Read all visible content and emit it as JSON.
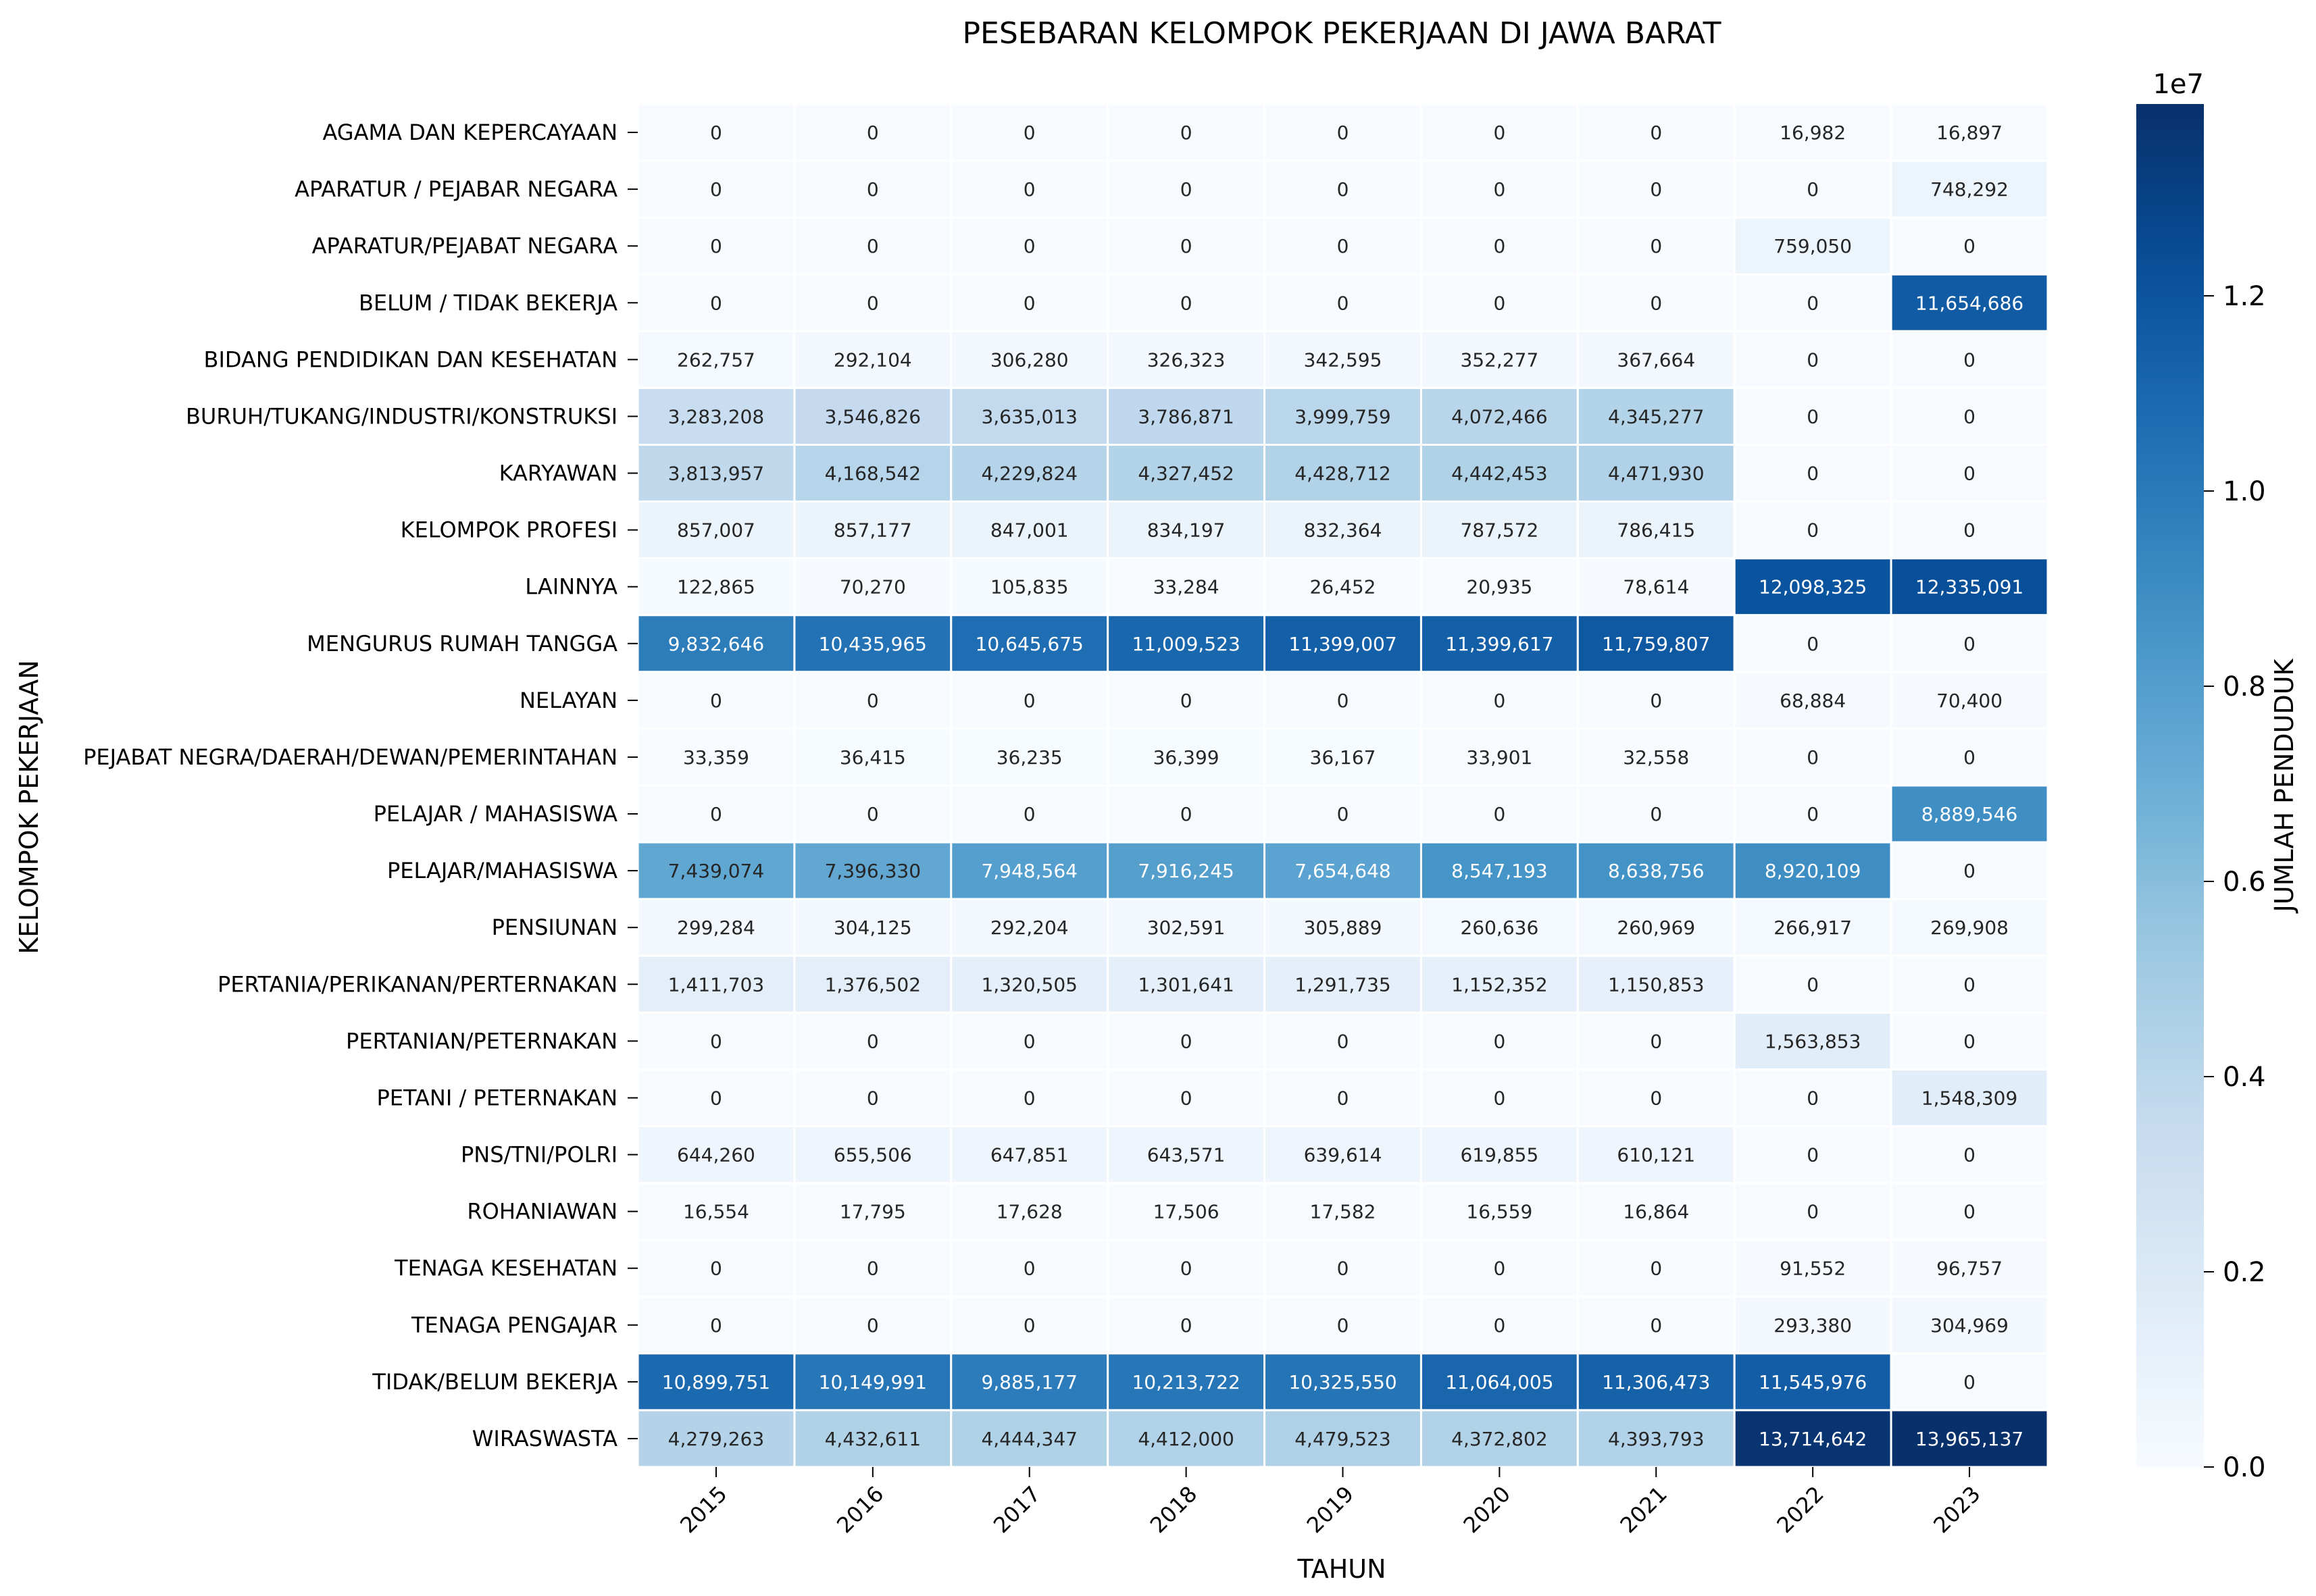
{
  "chart_data": {
    "type": "heatmap",
    "title": "PESEBARAN KELOMPOK PEKERJAAN DI JAWA BARAT",
    "xlabel": "TAHUN",
    "ylabel": "KELOMPOK PEKERJAAN",
    "x": [
      "2015",
      "2016",
      "2017",
      "2018",
      "2019",
      "2020",
      "2021",
      "2022",
      "2023"
    ],
    "y": [
      "AGAMA DAN KEPERCAYAAN",
      "APARATUR / PEJABAR NEGARA",
      "APARATUR/PEJABAT NEGARA",
      "BELUM / TIDAK BEKERJA",
      "BIDANG PENDIDIKAN DAN KESEHATAN",
      "BURUH/TUKANG/INDUSTRI/KONSTRUKSI",
      "KARYAWAN",
      "KELOMPOK PROFESI",
      "LAINNYA",
      "MENGURUS RUMAH TANGGA",
      "NELAYAN",
      "PEJABAT NEGRA/DAERAH/DEWAN/PEMERINTAHAN",
      "PELAJAR / MAHASISWA",
      "PELAJAR/MAHASISWA",
      "PENSIUNAN",
      "PERTANIA/PERIKANAN/PERTERNAKAN",
      "PERTANIAN/PETERNAKAN",
      "PETANI / PETERNAKAN",
      "PNS/TNI/POLRI",
      "ROHANIAWAN",
      "TENAGA KESEHATAN",
      "TENAGA PENGAJAR",
      "TIDAK/BELUM BEKERJA",
      "WIRASWASTA"
    ],
    "values": [
      [
        0,
        0,
        0,
        0,
        0,
        0,
        0,
        16982,
        16897
      ],
      [
        0,
        0,
        0,
        0,
        0,
        0,
        0,
        0,
        748292
      ],
      [
        0,
        0,
        0,
        0,
        0,
        0,
        0,
        759050,
        0
      ],
      [
        0,
        0,
        0,
        0,
        0,
        0,
        0,
        0,
        11654686
      ],
      [
        262757,
        292104,
        306280,
        326323,
        342595,
        352277,
        367664,
        0,
        0
      ],
      [
        3283208,
        3546826,
        3635013,
        3786871,
        3999759,
        4072466,
        4345277,
        0,
        0
      ],
      [
        3813957,
        4168542,
        4229824,
        4327452,
        4428712,
        4442453,
        4471930,
        0,
        0
      ],
      [
        857007,
        857177,
        847001,
        834197,
        832364,
        787572,
        786415,
        0,
        0
      ],
      [
        122865,
        70270,
        105835,
        33284,
        26452,
        20935,
        78614,
        12098325,
        12335091
      ],
      [
        9832646,
        10435965,
        10645675,
        11009523,
        11399007,
        11399617,
        11759807,
        0,
        0
      ],
      [
        0,
        0,
        0,
        0,
        0,
        0,
        0,
        68884,
        70400
      ],
      [
        33359,
        36415,
        36235,
        36399,
        36167,
        33901,
        32558,
        0,
        0
      ],
      [
        0,
        0,
        0,
        0,
        0,
        0,
        0,
        0,
        8889546
      ],
      [
        7439074,
        7396330,
        7948564,
        7916245,
        7654648,
        8547193,
        8638756,
        8920109,
        0
      ],
      [
        299284,
        304125,
        292204,
        302591,
        305889,
        260636,
        260969,
        266917,
        269908
      ],
      [
        1411703,
        1376502,
        1320505,
        1301641,
        1291735,
        1152352,
        1150853,
        0,
        0
      ],
      [
        0,
        0,
        0,
        0,
        0,
        0,
        0,
        1563853,
        0
      ],
      [
        0,
        0,
        0,
        0,
        0,
        0,
        0,
        0,
        1548309
      ],
      [
        644260,
        655506,
        647851,
        643571,
        639614,
        619855,
        610121,
        0,
        0
      ],
      [
        16554,
        17795,
        17628,
        17506,
        17582,
        16559,
        16864,
        0,
        0
      ],
      [
        0,
        0,
        0,
        0,
        0,
        0,
        0,
        91552,
        96757
      ],
      [
        0,
        0,
        0,
        0,
        0,
        0,
        0,
        293380,
        304969
      ],
      [
        10899751,
        10149991,
        9885177,
        10213722,
        10325550,
        11064005,
        11306473,
        11545976,
        0
      ],
      [
        4279263,
        4432611,
        4444347,
        4412000,
        4479523,
        4372802,
        4393793,
        13714642,
        13965137
      ]
    ],
    "colorbar": {
      "label": "JUMLAH PENDUDUK",
      "multiplier": "1e7",
      "ticks": [
        "0.0",
        "0.2",
        "0.4",
        "0.6",
        "0.8",
        "1.0",
        "1.2"
      ],
      "tick_values": [
        0,
        0.2,
        0.4,
        0.6,
        0.8,
        1.0,
        1.2
      ],
      "range": [
        0,
        13965137
      ],
      "colormap": "Blues",
      "color_low": "#f7fbff",
      "color_high": "#08306b"
    },
    "grid": false,
    "legend": "right (colorbar)"
  }
}
